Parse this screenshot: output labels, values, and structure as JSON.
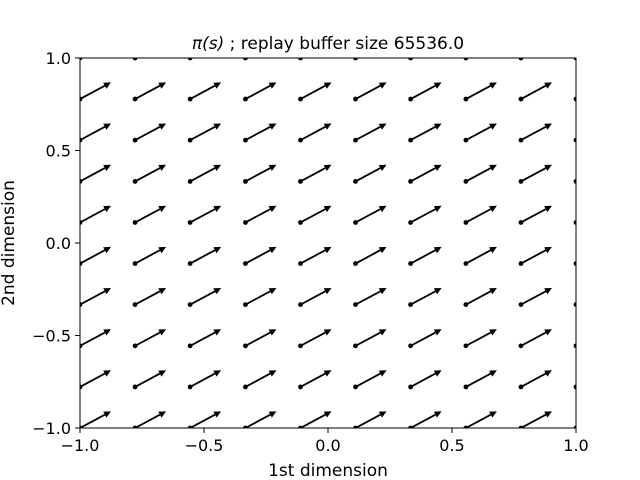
{
  "chart_data": {
    "type": "quiver",
    "title_prefix": "π(s)",
    "title_suffix": " ; replay buffer size 65536.0",
    "xlabel": "1st dimension",
    "ylabel": "2nd dimension",
    "xlim": [
      -1.0,
      1.0
    ],
    "ylim": [
      -1.0,
      1.0
    ],
    "xticks": [
      -1.0,
      -0.5,
      0.0,
      0.5,
      1.0
    ],
    "yticks": [
      -1.0,
      -0.5,
      0.0,
      0.5,
      1.0
    ],
    "xtick_labels": [
      "−1.0",
      "−0.5",
      "0.0",
      "0.5",
      "1.0"
    ],
    "ytick_labels": [
      "−1.0",
      "−0.5",
      "0.0",
      "0.5",
      "1.0"
    ],
    "grid": false,
    "legend": "none",
    "x_points": [
      -1.0,
      -0.778,
      -0.556,
      -0.333,
      -0.111,
      0.111,
      0.333,
      0.556,
      0.778,
      1.0
    ],
    "y_points": [
      -1.0,
      -0.778,
      -0.556,
      -0.333,
      -0.111,
      0.111,
      0.333,
      0.556,
      0.778,
      1.0
    ],
    "vector": {
      "dx": 0.125,
      "dy": 0.09
    },
    "arrow_color": "#000000"
  }
}
